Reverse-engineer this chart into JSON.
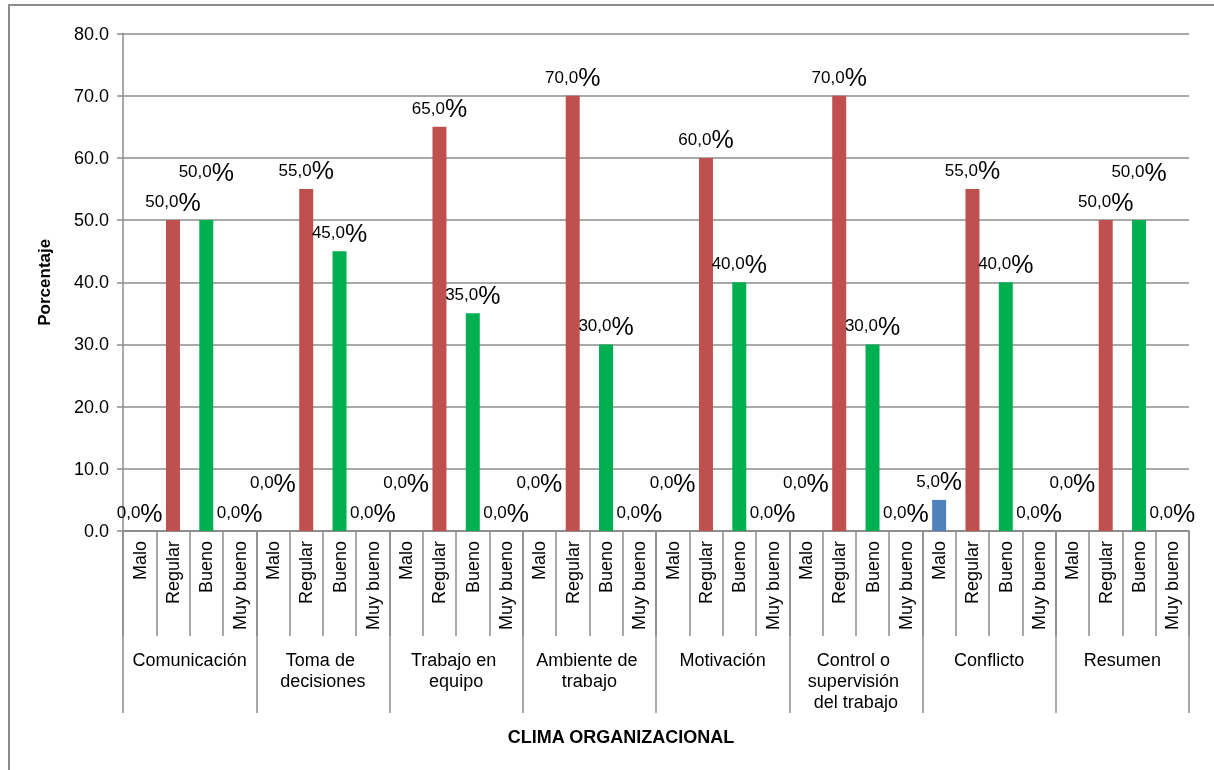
{
  "chart_data": {
    "type": "bar",
    "ylabel": "Porcentaje",
    "categories": [
      "Malo",
      "Regular",
      "Bueno",
      "Muy bueno",
      "Malo",
      "Regular",
      "Bueno",
      "Muy bueno",
      "Malo",
      "Regular",
      "Bueno",
      "Muy bueno",
      "Malo",
      "Regular",
      "Bueno",
      "Muy bueno",
      "Malo",
      "Regular",
      "Bueno",
      "Muy bueno",
      "Malo",
      "Regular",
      "Bueno",
      "Muy bueno",
      "Malo",
      "Regular",
      "Bueno",
      "Muy bueno",
      "Malo",
      "Regular",
      "Bueno",
      "Muy bueno"
    ],
    "values": [
      0,
      50,
      50,
      0,
      0,
      55,
      45,
      0,
      0,
      65,
      35,
      0,
      0,
      70,
      30,
      0,
      0,
      60,
      40,
      0,
      0,
      70,
      30,
      0,
      5,
      55,
      40,
      0,
      0,
      50,
      50,
      0
    ],
    "colors": [
      "#4f81bd",
      "#c0504d",
      "#00b050",
      "#8064a2",
      "#4f81bd",
      "#c0504d",
      "#00b050",
      "#8064a2",
      "#4f81bd",
      "#c0504d",
      "#00b050",
      "#8064a2",
      "#4f81bd",
      "#c0504d",
      "#00b050",
      "#8064a2",
      "#4f81bd",
      "#c0504d",
      "#00b050",
      "#8064a2",
      "#4f81bd",
      "#c0504d",
      "#00b050",
      "#8064a2",
      "#4f81bd",
      "#c0504d",
      "#00b050",
      "#8064a2",
      "#4f81bd",
      "#c0504d",
      "#00b050",
      "#8064a2"
    ],
    "value_labels": [
      "0,0%",
      "50,0%",
      "50,0%",
      "0,0%",
      "0,0%",
      "55,0%",
      "45,0%",
      "0,0%",
      "0,0%",
      "65,0%",
      "35,0%",
      "0,0%",
      "0,0%",
      "70,0%",
      "30,0%",
      "0,0%",
      "0,0%",
      "60,0%",
      "40,0%",
      "0,0%",
      "0,0%",
      "70,0%",
      "30,0%",
      "0,0%",
      "5,0%",
      "55,0%",
      "40,0%",
      "0,0%",
      "0,0%",
      "50,0%",
      "50,0%",
      "0,0%"
    ],
    "annotations": [
      "Comunicación",
      "Toma de decisiones",
      "Trabajo en equipo",
      "Ambiente de trabajo",
      "Motivación",
      "Control o supervisión del trabajo",
      "Conflicto",
      "Resumen",
      "CLIMA ORGANIZACIONAL"
    ],
    "ylim": [
      0,
      80
    ],
    "yticks": [
      {
        "value": 0,
        "label": "0.0"
      },
      {
        "value": 10,
        "label": "10.0"
      },
      {
        "value": 20,
        "label": "20.0"
      },
      {
        "value": 30,
        "label": "30.0"
      },
      {
        "value": 40,
        "label": "40.0"
      },
      {
        "value": 50,
        "label": "50.0"
      },
      {
        "value": 60,
        "label": "60.0"
      },
      {
        "value": 70,
        "label": "70.0"
      },
      {
        "value": 80,
        "label": "80.0"
      }
    ],
    "grid": "y"
  }
}
